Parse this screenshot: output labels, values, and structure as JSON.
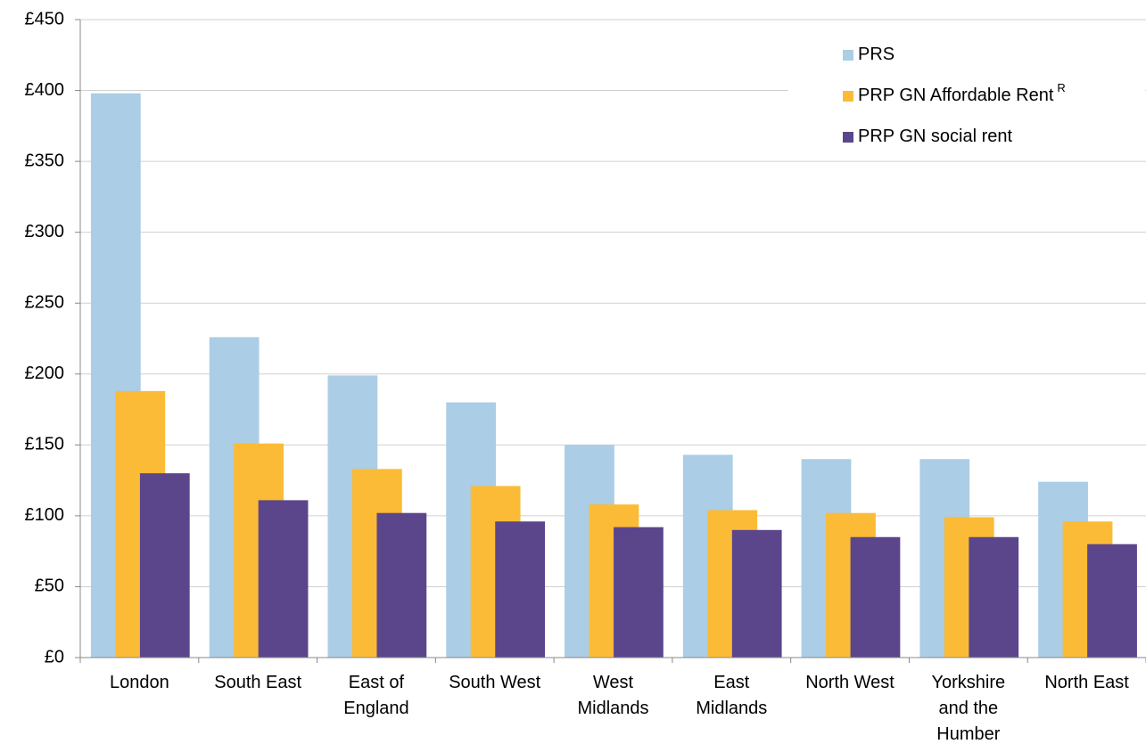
{
  "chart_data": {
    "type": "bar",
    "categories": [
      "London",
      "South East",
      "East of\nEngland",
      "South West",
      "West\nMidlands",
      "East\nMidlands",
      "North West",
      "Yorkshire\nand the\nHumber",
      "North East"
    ],
    "series": [
      {
        "name": "PRS",
        "color": "#abcde5",
        "values": [
          398,
          226,
          199,
          180,
          150,
          143,
          140,
          140,
          124
        ]
      },
      {
        "name": "PRP GN Affordable Rent",
        "superscript": "R",
        "color": "#fbbb36",
        "values": [
          188,
          151,
          133,
          121,
          108,
          104,
          102,
          99,
          96
        ]
      },
      {
        "name": "PRP GN social rent",
        "color": "#5b468c",
        "values": [
          130,
          111,
          102,
          96,
          92,
          90,
          85,
          85,
          80
        ]
      }
    ],
    "ylim": [
      0,
      450
    ],
    "yticks": [
      {
        "value": 0,
        "label": "£0"
      },
      {
        "value": 50,
        "label": "£50"
      },
      {
        "value": 100,
        "label": "£100"
      },
      {
        "value": 150,
        "label": "£150"
      },
      {
        "value": 200,
        "label": "£200"
      },
      {
        "value": 250,
        "label": "£250"
      },
      {
        "value": 300,
        "label": "£300"
      },
      {
        "value": 350,
        "label": "£350"
      },
      {
        "value": 400,
        "label": "£400"
      },
      {
        "value": 450,
        "label": "£450"
      }
    ],
    "grid": true,
    "legend": "top-right"
  }
}
